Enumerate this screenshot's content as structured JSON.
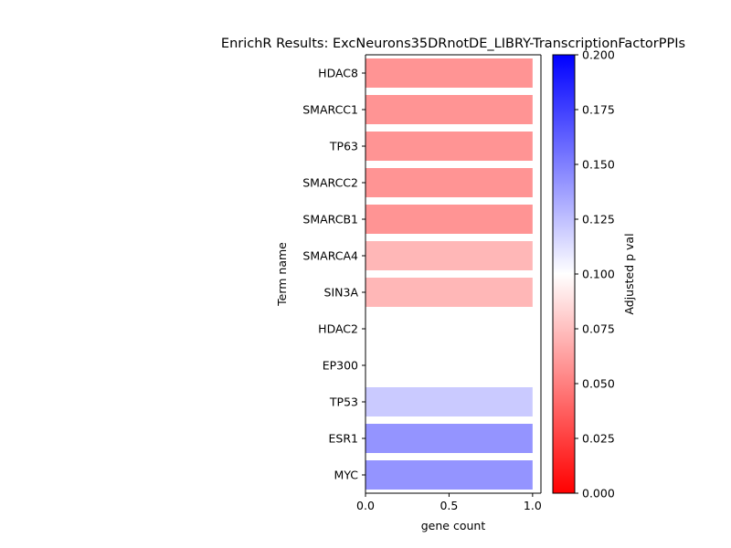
{
  "chart_data": {
    "type": "bar",
    "orientation": "horizontal",
    "title": "EnrichR Results: ExcNeurons35DRnotDE_LIBRY-TranscriptionFactorPPIs",
    "xlabel": "gene count",
    "ylabel": "Term name",
    "xlim": [
      0,
      1.05
    ],
    "xticks": [
      "0.0",
      "0.5",
      "1.0"
    ],
    "xtick_values": [
      0,
      0.5,
      1.0
    ],
    "categories": [
      "HDAC8",
      "SMARCC1",
      "TP63",
      "SMARCC2",
      "SMARCB1",
      "SMARCA4",
      "SIN3A",
      "HDAC2",
      "EP300",
      "TP53",
      "ESR1",
      "MYC"
    ],
    "values": [
      1,
      1,
      1,
      1,
      1,
      1,
      1,
      1,
      1,
      1,
      1,
      1
    ],
    "adjusted_p_values": [
      0.04,
      0.04,
      0.04,
      0.04,
      0.04,
      0.06,
      0.06,
      0.1,
      0.1,
      0.13,
      0.16,
      0.16
    ],
    "colorbar": {
      "label": "Adjusted p val",
      "range": [
        0,
        0.2
      ],
      "ticks": [
        "0.000",
        "0.025",
        "0.050",
        "0.075",
        "0.100",
        "0.125",
        "0.150",
        "0.175",
        "0.200"
      ],
      "tick_values": [
        0,
        0.025,
        0.05,
        0.075,
        0.1,
        0.125,
        0.15,
        0.175,
        0.2
      ],
      "colormap": [
        "#ff0000",
        "#ffffff",
        "#0000ff"
      ]
    },
    "grid": false,
    "legend": "none"
  }
}
